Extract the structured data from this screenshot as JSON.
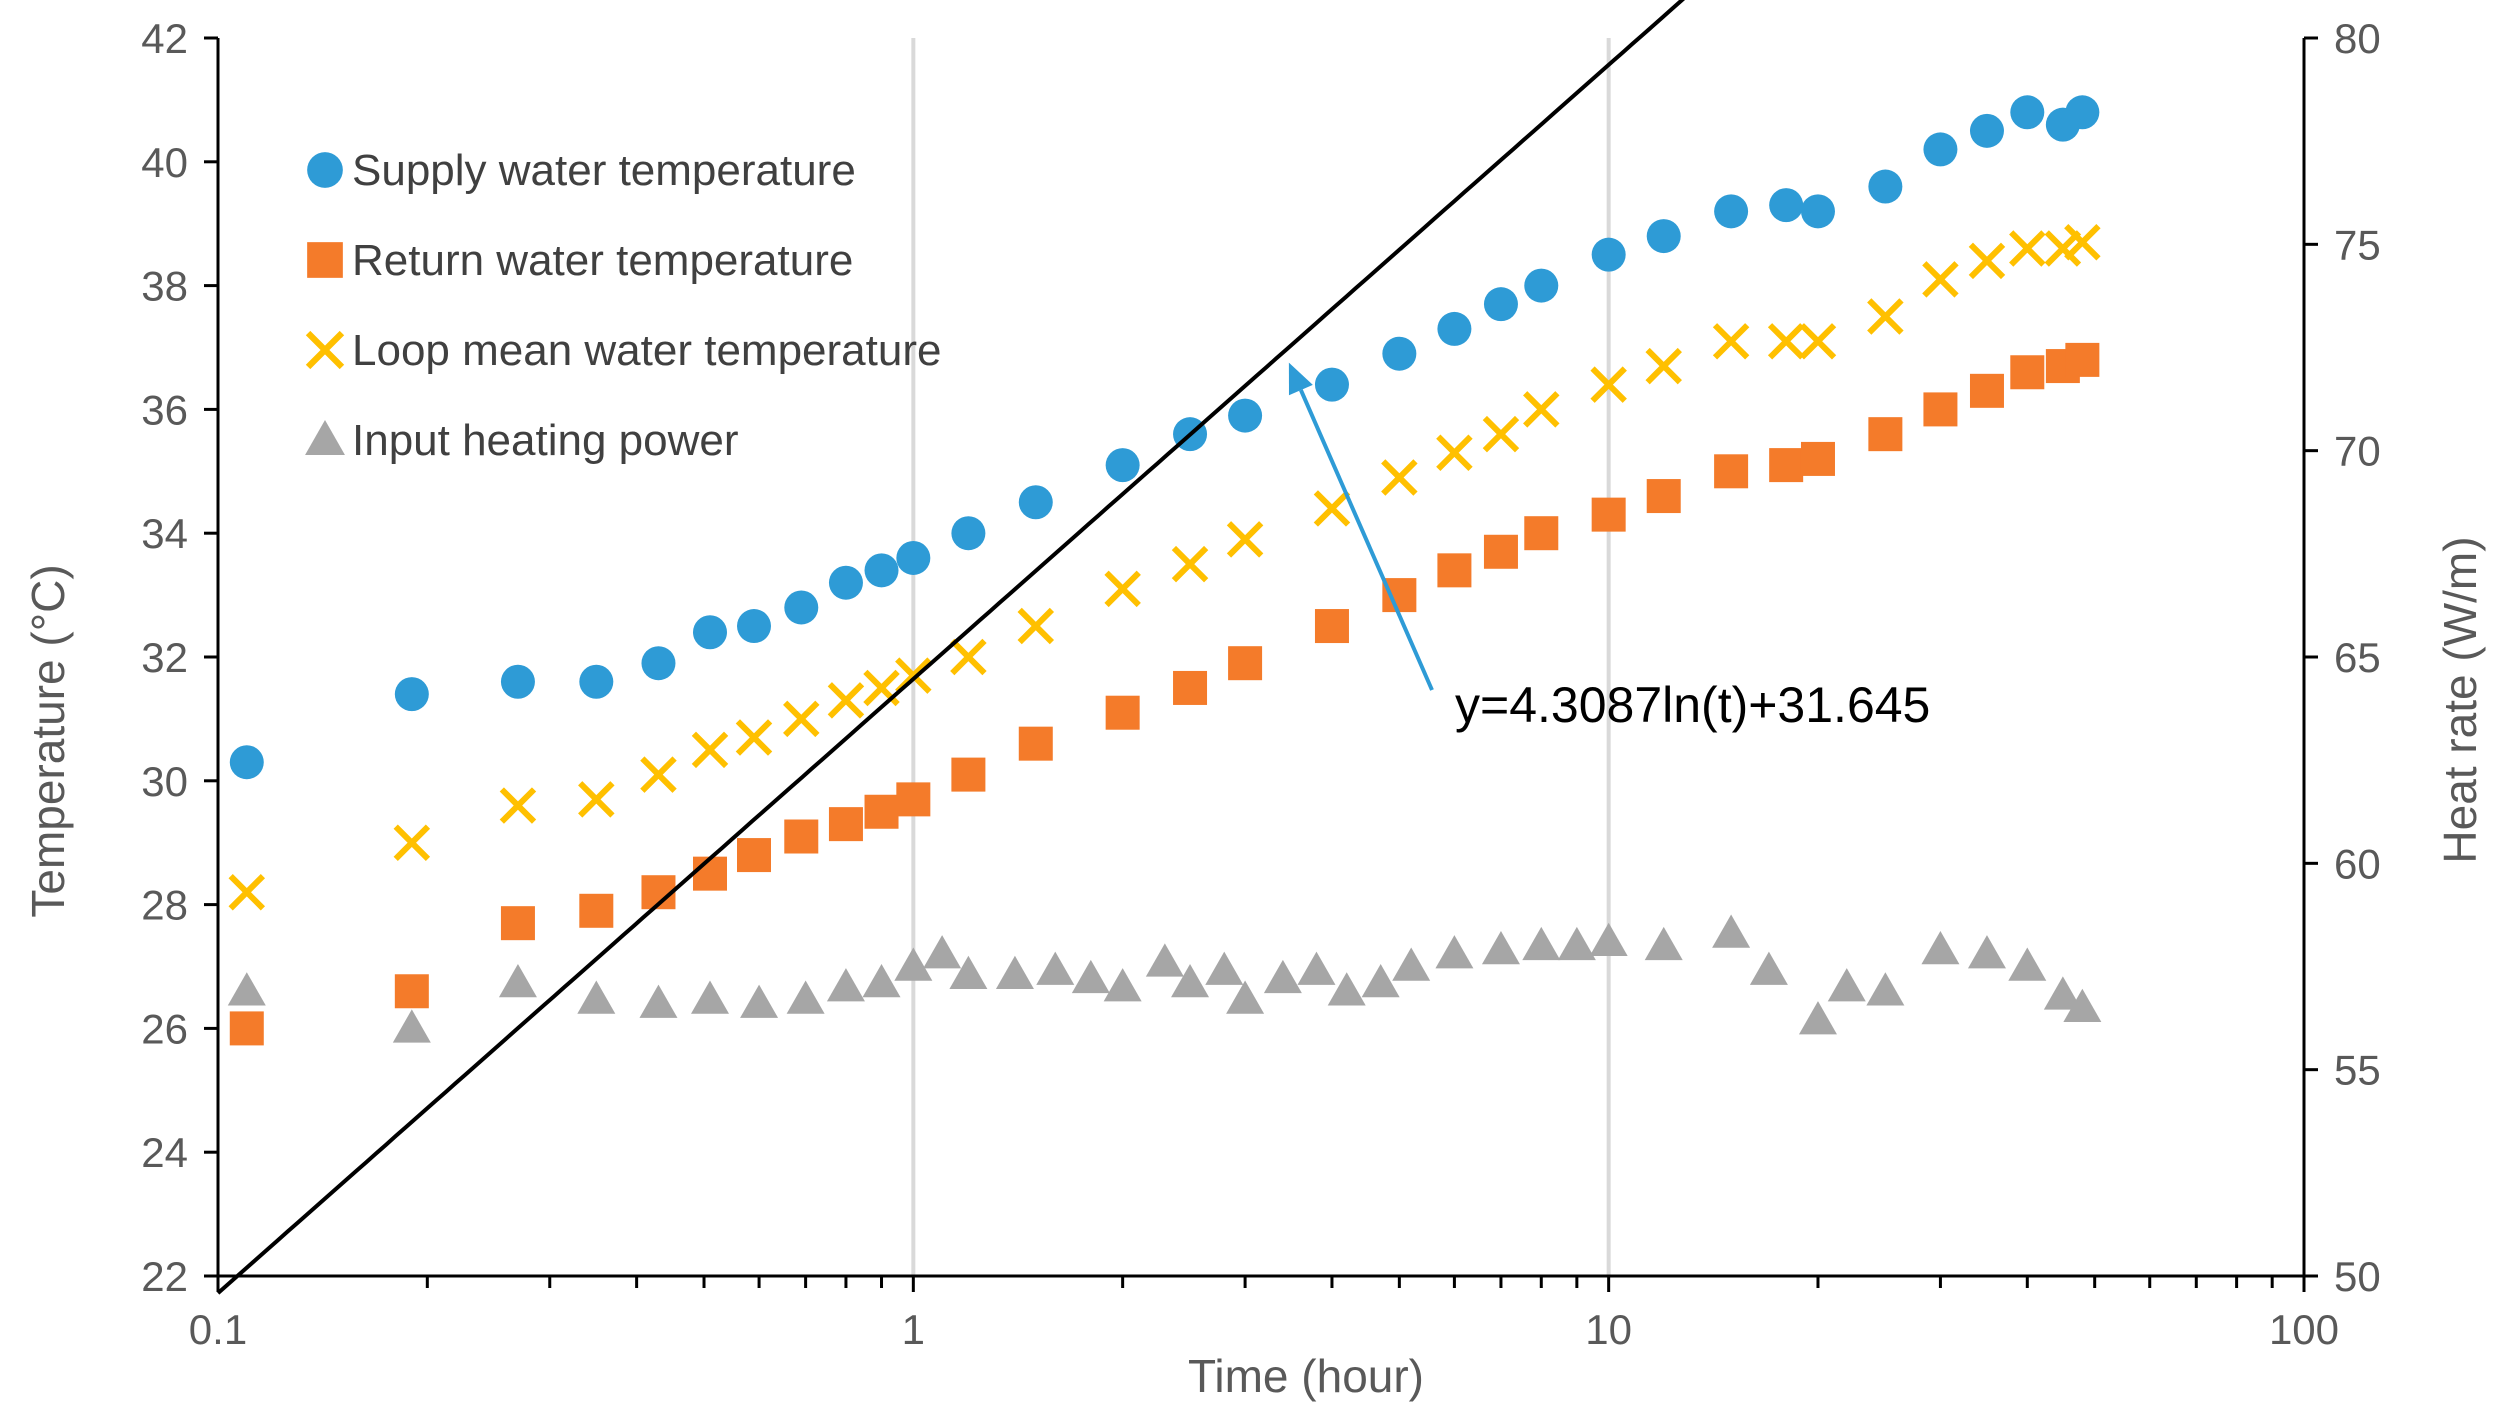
{
  "chart_data": {
    "type": "scatter",
    "title": "",
    "xlabel": "Time (hour)",
    "ylabel": "Temperature (°C)",
    "y2label": "Heat rate (W/m)",
    "xscale": "log",
    "xlim": [
      0.1,
      100
    ],
    "ylim": [
      22,
      42
    ],
    "y2lim": [
      50,
      80
    ],
    "x_ticks": [
      0.1,
      1,
      10,
      100
    ],
    "x_tick_labels": [
      "0.1",
      "1",
      "10",
      "100"
    ],
    "y_ticks": [
      22,
      24,
      26,
      28,
      30,
      32,
      34,
      36,
      38,
      40,
      42
    ],
    "y_tick_labels": [
      "22",
      "24",
      "26",
      "28",
      "30",
      "32",
      "34",
      "36",
      "38",
      "40",
      "42"
    ],
    "y2_ticks": [
      50,
      55,
      60,
      65,
      70,
      75,
      80
    ],
    "y2_tick_labels": [
      "50",
      "55",
      "60",
      "65",
      "70",
      "75",
      "80"
    ],
    "grid": "vertical major gridlines at 1 and 10",
    "legend_position": "top-left",
    "colors": {
      "supply": "#2E9BD6",
      "return": "#F47B2A",
      "loop": "#FFC000",
      "power": "#A6A6A6",
      "fit": "#000000",
      "arrow": "#2E9BD6",
      "axis": "#000000",
      "grid": "#D9D9D9",
      "text": "#595959"
    },
    "series": [
      {
        "name": "Supply water temperature",
        "axis": "left",
        "marker": "circle",
        "x": [
          0.11,
          0.19,
          0.27,
          0.35,
          0.43,
          0.51,
          0.59,
          0.69,
          0.8,
          0.9,
          1.0,
          1.2,
          1.5,
          2.0,
          2.5,
          3.0,
          4.0,
          5.0,
          6.0,
          7.0,
          8.0,
          10.0,
          12.0,
          15.0,
          18.0,
          20.0,
          25.0,
          30.0,
          35.0,
          40.0,
          45.0,
          48.0
        ],
        "y": [
          30.3,
          31.4,
          31.6,
          31.6,
          31.9,
          32.4,
          32.5,
          32.8,
          33.2,
          33.4,
          33.6,
          34.0,
          34.5,
          35.1,
          35.6,
          35.9,
          36.4,
          36.9,
          37.3,
          37.7,
          38.0,
          38.5,
          38.8,
          39.2,
          39.3,
          39.2,
          39.6,
          40.2,
          40.5,
          40.8,
          40.6,
          40.8
        ]
      },
      {
        "name": "Return water temperature",
        "axis": "left",
        "marker": "square",
        "x": [
          0.11,
          0.19,
          0.27,
          0.35,
          0.43,
          0.51,
          0.59,
          0.69,
          0.8,
          0.9,
          1.0,
          1.2,
          1.5,
          2.0,
          2.5,
          3.0,
          4.0,
          5.0,
          6.0,
          7.0,
          8.0,
          10.0,
          12.0,
          15.0,
          18.0,
          20.0,
          25.0,
          30.0,
          35.0,
          40.0,
          45.0,
          48.0
        ],
        "y": [
          26.0,
          26.6,
          27.7,
          27.9,
          28.2,
          28.5,
          28.8,
          29.1,
          29.3,
          29.5,
          29.7,
          30.1,
          30.6,
          31.1,
          31.5,
          31.9,
          32.5,
          33.0,
          33.4,
          33.7,
          34.0,
          34.3,
          34.6,
          35.0,
          35.1,
          35.2,
          35.6,
          36.0,
          36.3,
          36.6,
          36.7,
          36.8
        ]
      },
      {
        "name": "Loop mean water temperature",
        "axis": "left",
        "marker": "x",
        "x": [
          0.11,
          0.19,
          0.27,
          0.35,
          0.43,
          0.51,
          0.59,
          0.69,
          0.8,
          0.9,
          1.0,
          1.2,
          1.5,
          2.0,
          2.5,
          3.0,
          4.0,
          5.0,
          6.0,
          7.0,
          8.0,
          10.0,
          12.0,
          15.0,
          18.0,
          20.0,
          25.0,
          30.0,
          35.0,
          40.0,
          45.0,
          48.0
        ],
        "y": [
          28.2,
          29.0,
          29.6,
          29.7,
          30.1,
          30.5,
          30.7,
          31.0,
          31.3,
          31.5,
          31.7,
          32.0,
          32.5,
          33.1,
          33.5,
          33.9,
          34.4,
          34.9,
          35.3,
          35.6,
          36.0,
          36.4,
          36.7,
          37.1,
          37.1,
          37.1,
          37.5,
          38.1,
          38.4,
          38.6,
          38.6,
          38.7
        ]
      },
      {
        "name": "Input heating power",
        "axis": "right",
        "marker": "triangle",
        "x": [
          0.11,
          0.19,
          0.27,
          0.35,
          0.43,
          0.51,
          0.6,
          0.7,
          0.8,
          0.9,
          1.0,
          1.1,
          1.2,
          1.4,
          1.6,
          1.8,
          2.0,
          2.3,
          2.5,
          2.8,
          3.0,
          3.4,
          3.8,
          4.2,
          4.7,
          5.2,
          6.0,
          7.0,
          8.0,
          9.0,
          10.0,
          12.0,
          15.0,
          17.0,
          20.0,
          22.0,
          25.0,
          30.0,
          35.0,
          40.0,
          45.0,
          48.0
        ],
        "y": [
          56.9,
          56.0,
          57.1,
          56.7,
          56.6,
          56.7,
          56.6,
          56.7,
          57.0,
          57.1,
          57.5,
          57.8,
          57.3,
          57.3,
          57.4,
          57.2,
          57.0,
          57.6,
          57.1,
          57.4,
          56.7,
          57.2,
          57.4,
          56.9,
          57.1,
          57.5,
          57.8,
          57.9,
          58.0,
          58.0,
          58.1,
          58.0,
          58.3,
          57.4,
          56.2,
          57.0,
          56.9,
          57.9,
          57.8,
          57.5,
          56.8,
          56.5
        ]
      }
    ],
    "trendline": {
      "series": "Loop mean water temperature",
      "equation": "y=4.3087ln(t)+31.645",
      "a": 4.3087,
      "b": 31.645,
      "x_range": [
        0.1,
        70
      ]
    },
    "annotation": {
      "text": "y=4.3087ln(t)+31.645",
      "points_to_x": 3.4
    }
  }
}
